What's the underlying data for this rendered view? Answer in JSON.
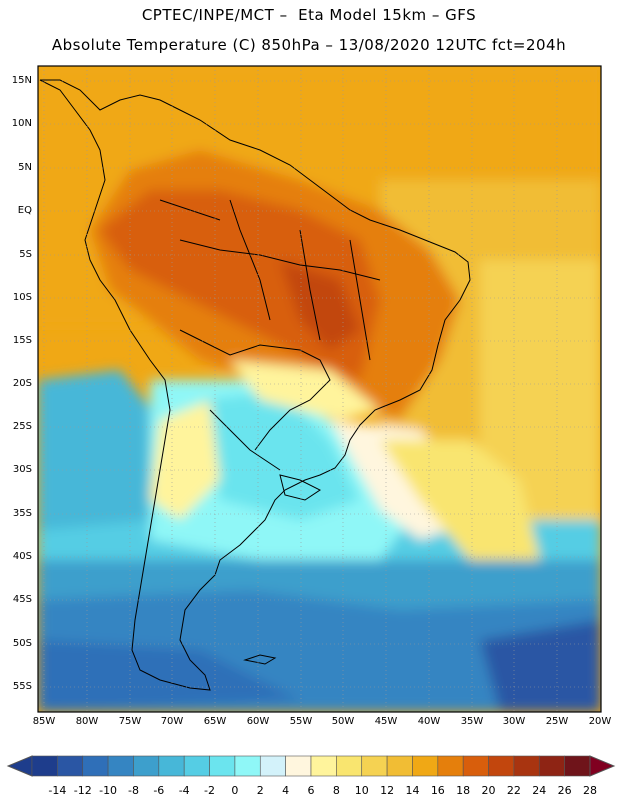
{
  "title_line1": "CPTEC/INPE/MCT –  Eta Model 15km – GFS",
  "title_line2": "Absolute Temperature (C) 850hPa – 13/08/2020 12UTC fct=204h",
  "lat_labels": [
    "15N",
    "10N",
    "5N",
    "EQ",
    "5S",
    "10S",
    "15S",
    "20S",
    "25S",
    "30S",
    "35S",
    "40S",
    "45S",
    "50S",
    "55S"
  ],
  "lon_labels": [
    "85W",
    "80W",
    "75W",
    "70W",
    "65W",
    "60W",
    "55W",
    "50W",
    "45W",
    "40W",
    "35W",
    "30W",
    "25W",
    "20W"
  ],
  "colorbar": {
    "labels": [
      "-14",
      "-12",
      "-10",
      "-8",
      "-6",
      "-4",
      "-2",
      "0",
      "2",
      "4",
      "6",
      "8",
      "10",
      "12",
      "14",
      "16",
      "18",
      "20",
      "22",
      "24",
      "26",
      "28"
    ],
    "colors": [
      "#1e3d8c",
      "#2a56a4",
      "#2f6fb8",
      "#3585c2",
      "#3d9fcc",
      "#47b7d8",
      "#55cde4",
      "#6be4ee",
      "#8ff7f7",
      "#d3f2fa",
      "#fff6de",
      "#fff49c",
      "#f9e56f",
      "#f5d252",
      "#f1bd34",
      "#f0a815",
      "#e57f0c",
      "#d85e0c",
      "#c2460d",
      "#a83410",
      "#8e2414",
      "#6f141a",
      "#800020"
    ]
  }
}
